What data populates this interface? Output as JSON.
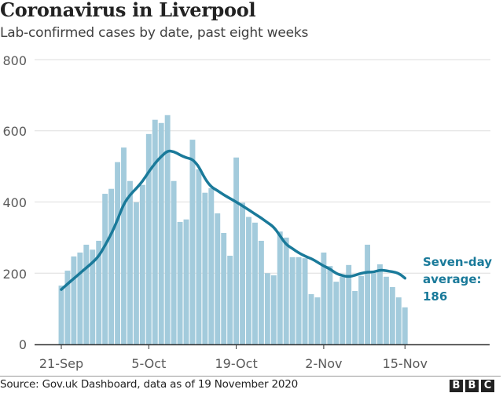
{
  "header": {
    "title": "Coronavirus in Liverpool",
    "subtitle": "Lab-confirmed cases by date, past eight weeks"
  },
  "footer": {
    "source": "Source: Gov.uk Dashboard, data as of 19 November 2020",
    "logo_letters": [
      "B",
      "B",
      "C"
    ]
  },
  "colors": {
    "bar": "#a3cbdc",
    "line": "#1a7a9a",
    "grid": "#dddddd",
    "axis": "#333333",
    "label": "#5a5a5a"
  },
  "chart_data": {
    "type": "bar",
    "title": "Coronavirus in Liverpool",
    "subtitle": "Lab-confirmed cases by date, past eight weeks",
    "xlabel": "",
    "ylabel": "",
    "ylim": [
      0,
      800
    ],
    "yticks": [
      0,
      200,
      400,
      600,
      800
    ],
    "ytick_labels": [
      "0",
      "200",
      "400",
      "600",
      "800"
    ],
    "grid": true,
    "start_date": "21-Sep",
    "xticks": [
      {
        "day_index": 0,
        "label": "21-Sep"
      },
      {
        "day_index": 14,
        "label": "5-Oct"
      },
      {
        "day_index": 28,
        "label": "19-Oct"
      },
      {
        "day_index": 42,
        "label": "2-Nov"
      },
      {
        "day_index": 55,
        "label": "15-Nov"
      }
    ],
    "series": [
      {
        "name": "Daily lab-confirmed cases",
        "type": "bar",
        "values": [
          165,
          207,
          247,
          258,
          280,
          266,
          291,
          423,
          437,
          512,
          553,
          459,
          399,
          448,
          591,
          631,
          622,
          644,
          459,
          344,
          351,
          575,
          492,
          426,
          439,
          368,
          313,
          249,
          525,
          398,
          358,
          342,
          291,
          200,
          194,
          317,
          300,
          245,
          245,
          242,
          141,
          132,
          258,
          220,
          176,
          190,
          223,
          150,
          192,
          280,
          200,
          225,
          190,
          161,
          132,
          104
        ]
      },
      {
        "name": "Seven-day average",
        "type": "line",
        "values": [
          154,
          170,
          185,
          200,
          215,
          230,
          248,
          278,
          310,
          350,
          395,
          420,
          438,
          458,
          485,
          509,
          528,
          544,
          542,
          532,
          524,
          520,
          500,
          465,
          442,
          432,
          420,
          410,
          400,
          389,
          378,
          366,
          355,
          342,
          330,
          305,
          280,
          269,
          257,
          248,
          241,
          231,
          220,
          212,
          199,
          193,
          190,
          194,
          200,
          203,
          203,
          209,
          207,
          204,
          200,
          186
        ]
      }
    ],
    "annotation": {
      "lines": [
        "Seven-day",
        "average:",
        "186"
      ],
      "series": "Seven-day average"
    }
  }
}
